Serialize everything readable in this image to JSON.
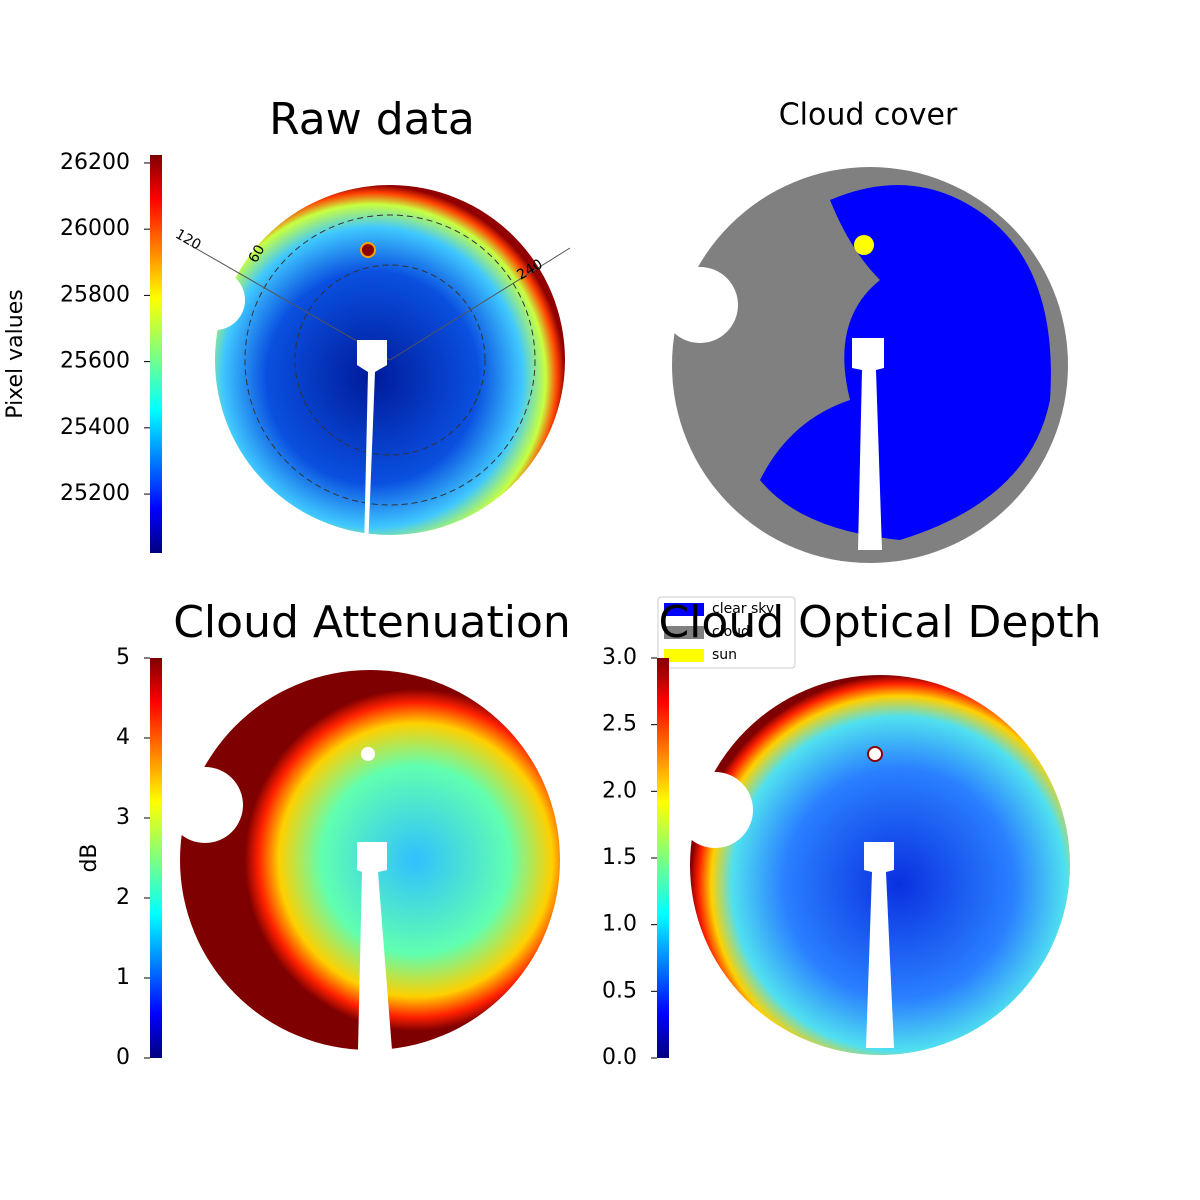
{
  "chart_data": [
    {
      "type": "image",
      "title": "Raw data",
      "ylabel": "Pixel values",
      "colormap": "jet",
      "ylim": [
        25022,
        26224
      ],
      "yticks": [
        25200,
        25400,
        25600,
        25800,
        26000,
        26200
      ],
      "annotations": [
        "120",
        "60",
        "240"
      ]
    },
    {
      "type": "image",
      "title": "Cloud cover",
      "legend": [
        {
          "name": "clear sky",
          "color": "#0000ff"
        },
        {
          "name": "cloud",
          "color": "#808080"
        },
        {
          "name": "sun",
          "color": "#ffff00"
        }
      ]
    },
    {
      "type": "image",
      "title": "Cloud Attenuation",
      "ylabel": "dB",
      "colormap": "jet",
      "ylim": [
        0,
        5
      ],
      "yticks": [
        0,
        1,
        2,
        3,
        4,
        5
      ]
    },
    {
      "type": "image",
      "title": "Cloud Optical Depth",
      "colormap": "jet",
      "ylim": [
        0,
        3
      ],
      "yticks": [
        {
          "value": 0,
          "label": "0.0"
        },
        {
          "value": 0.5,
          "label": "0.5"
        },
        {
          "value": 1,
          "label": "1.0"
        },
        {
          "value": 1.5,
          "label": "1.5"
        },
        {
          "value": 2,
          "label": "2.0"
        },
        {
          "value": 2.5,
          "label": "2.5"
        },
        {
          "value": 3,
          "label": "3.0"
        }
      ]
    }
  ]
}
